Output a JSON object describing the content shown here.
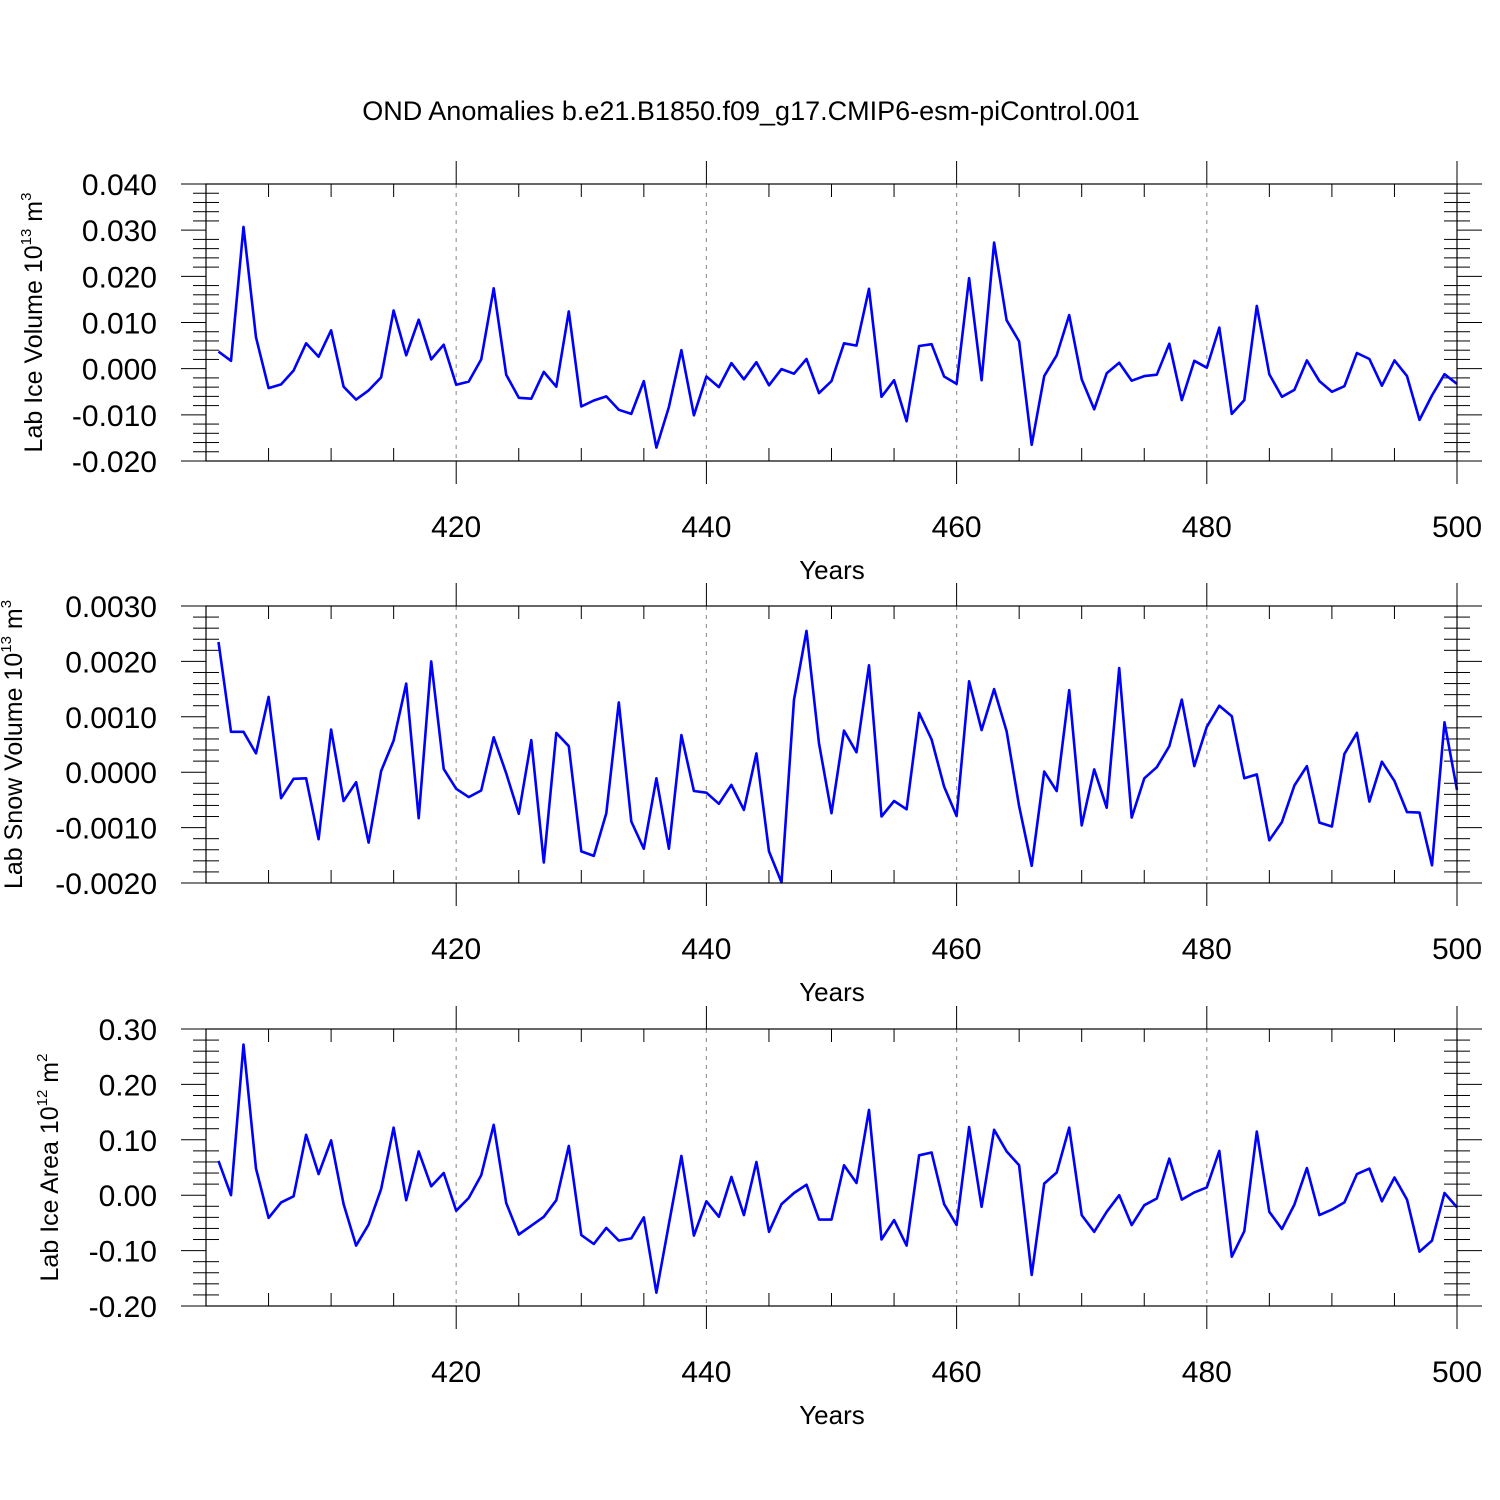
{
  "title": "OND Anomalies b.e21.B1850.f09_g17.CMIP6-esm-piControl.001",
  "colors": {
    "series": "#0000ff",
    "axis": "#000000",
    "grid": "#999999"
  },
  "chart_data": [
    {
      "type": "line",
      "xlabel": "Years",
      "ylabel": {
        "text": "Lab Ice Volume 10",
        "sup": "13",
        "unit": " m",
        "unit_sup": "3"
      },
      "xlim": [
        400,
        500
      ],
      "ylim": [
        -0.02,
        0.04
      ],
      "xticks": [
        "420",
        "440",
        "460",
        "480",
        "500"
      ],
      "yticks": [
        "-0.020",
        "-0.010",
        "0.000",
        "0.010",
        "0.020",
        "0.030",
        "0.040"
      ],
      "grid": "vertical dashed at major x ticks",
      "x": [
        401,
        402,
        403,
        404,
        405,
        406,
        407,
        408,
        409,
        410,
        411,
        412,
        413,
        414,
        415,
        416,
        417,
        418,
        419,
        420,
        421,
        422,
        423,
        424,
        425,
        426,
        427,
        428,
        429,
        430,
        431,
        432,
        433,
        434,
        435,
        436,
        437,
        438,
        439,
        440,
        441,
        442,
        443,
        444,
        445,
        446,
        447,
        448,
        449,
        450,
        451,
        452,
        453,
        454,
        455,
        456,
        457,
        458,
        459,
        460,
        461,
        462,
        463,
        464,
        465,
        466,
        467,
        468,
        469,
        470,
        471,
        472,
        473,
        474,
        475,
        476,
        477,
        478,
        479,
        480,
        481,
        482,
        483,
        484,
        485,
        486,
        487,
        488,
        489,
        490,
        491,
        492,
        493,
        494,
        495,
        496,
        497,
        498,
        499,
        500
      ],
      "values": [
        0.0037,
        0.0017,
        0.0307,
        0.0068,
        -0.0042,
        -0.0034,
        -0.0004,
        0.0055,
        0.0026,
        0.0083,
        -0.0039,
        -0.0067,
        -0.0047,
        -0.0019,
        0.0126,
        0.0029,
        0.0106,
        0.002,
        0.0052,
        -0.0035,
        -0.0028,
        0.002,
        0.0174,
        -0.0013,
        -0.0063,
        -0.0065,
        -0.0007,
        -0.0039,
        0.0124,
        -0.0082,
        -0.0069,
        -0.006,
        -0.0089,
        -0.0098,
        -0.0027,
        -0.0171,
        -0.0083,
        0.004,
        -0.0101,
        -0.0017,
        -0.004,
        0.0012,
        -0.0023,
        0.0014,
        -0.0036,
        -0.0001,
        -0.0011,
        0.0021,
        -0.0053,
        -0.0027,
        0.0055,
        0.005,
        0.0173,
        -0.0061,
        -0.0025,
        -0.0114,
        0.0049,
        0.0053,
        -0.0017,
        -0.0033,
        0.0196,
        -0.0025,
        0.0273,
        0.0105,
        0.0059,
        -0.0165,
        -0.0016,
        0.0029,
        0.0116,
        -0.0023,
        -0.0088,
        -0.001,
        0.0013,
        -0.0026,
        -0.0016,
        -0.0013,
        0.0054,
        -0.0068,
        0.0017,
        0.0002,
        0.0089,
        -0.0098,
        -0.0068,
        0.0136,
        -0.0012,
        -0.0061,
        -0.0046,
        0.0018,
        -0.0027,
        -0.005,
        -0.0038,
        0.0034,
        0.0021,
        -0.0037,
        0.0018,
        -0.0016,
        -0.0111,
        -0.0058,
        -0.0012,
        -0.0033
      ]
    },
    {
      "type": "line",
      "xlabel": "Years",
      "ylabel": {
        "text": "Lab Snow Volume 10",
        "sup": "13",
        "unit": " m",
        "unit_sup": "3"
      },
      "xlim": [
        400,
        500
      ],
      "ylim": [
        -0.002,
        0.003
      ],
      "xticks": [
        "420",
        "440",
        "460",
        "480",
        "500"
      ],
      "yticks": [
        "-0.0020",
        "-0.0010",
        "0.0000",
        "0.0010",
        "0.0020",
        "0.0030"
      ],
      "grid": "vertical dashed at major x ticks",
      "x": [
        401,
        402,
        403,
        404,
        405,
        406,
        407,
        408,
        409,
        410,
        411,
        412,
        413,
        414,
        415,
        416,
        417,
        418,
        419,
        420,
        421,
        422,
        423,
        424,
        425,
        426,
        427,
        428,
        429,
        430,
        431,
        432,
        433,
        434,
        435,
        436,
        437,
        438,
        439,
        440,
        441,
        442,
        443,
        444,
        445,
        446,
        447,
        448,
        449,
        450,
        451,
        452,
        453,
        454,
        455,
        456,
        457,
        458,
        459,
        460,
        461,
        462,
        463,
        464,
        465,
        466,
        467,
        468,
        469,
        470,
        471,
        472,
        473,
        474,
        475,
        476,
        477,
        478,
        479,
        480,
        481,
        482,
        483,
        484,
        485,
        486,
        487,
        488,
        489,
        490,
        491,
        492,
        493,
        494,
        495,
        496,
        497,
        498,
        499,
        500
      ],
      "values": [
        0.00235,
        0.00073,
        0.00073,
        0.00034,
        0.00136,
        -0.00047,
        -0.00012,
        -0.00011,
        -0.00121,
        0.00077,
        -0.00052,
        -0.00018,
        -0.00127,
        2e-05,
        0.00057,
        0.0016,
        -0.00083,
        0.002,
        6e-05,
        -0.0003,
        -0.00045,
        -0.00033,
        0.00063,
        -2e-05,
        -0.00075,
        0.00058,
        -0.00163,
        0.00071,
        0.00047,
        -0.00143,
        -0.00151,
        -0.00074,
        0.00126,
        -0.00089,
        -0.00138,
        -0.00011,
        -0.00138,
        0.00067,
        -0.00034,
        -0.00037,
        -0.00057,
        -0.00023,
        -0.00068,
        0.00034,
        -0.00143,
        -0.00199,
        0.00131,
        0.00255,
        0.00052,
        -0.00074,
        0.00075,
        0.00036,
        0.00193,
        -0.0008,
        -0.00052,
        -0.00067,
        0.00107,
        0.00059,
        -0.00026,
        -0.00079,
        0.00164,
        0.00076,
        0.0015,
        0.00074,
        -0.00061,
        -0.00169,
        1e-05,
        -0.00034,
        0.00148,
        -0.00096,
        5e-05,
        -0.00064,
        0.00188,
        -0.00082,
        -0.00011,
        9e-05,
        0.00047,
        0.00131,
        0.00011,
        0.00082,
        0.0012,
        0.00101,
        -0.00011,
        -4e-05,
        -0.00123,
        -0.0009,
        -0.00024,
        0.00011,
        -0.00091,
        -0.00098,
        0.00033,
        0.00071,
        -0.00053,
        0.00019,
        -0.00016,
        -0.00072,
        -0.00073,
        -0.00168,
        0.0009,
        -0.00032
      ]
    },
    {
      "type": "line",
      "xlabel": "Years",
      "ylabel": {
        "text": "Lab Ice Area 10",
        "sup": "12",
        "unit": " m",
        "unit_sup": "2"
      },
      "xlim": [
        400,
        500
      ],
      "ylim": [
        -0.2,
        0.3
      ],
      "xticks": [
        "420",
        "440",
        "460",
        "480",
        "500"
      ],
      "yticks": [
        "-0.20",
        "-0.10",
        "0.00",
        "0.10",
        "0.20",
        "0.30"
      ],
      "grid": "vertical dashed at major x ticks",
      "x": [
        401,
        402,
        403,
        404,
        405,
        406,
        407,
        408,
        409,
        410,
        411,
        412,
        413,
        414,
        415,
        416,
        417,
        418,
        419,
        420,
        421,
        422,
        423,
        424,
        425,
        426,
        427,
        428,
        429,
        430,
        431,
        432,
        433,
        434,
        435,
        436,
        437,
        438,
        439,
        440,
        441,
        442,
        443,
        444,
        445,
        446,
        447,
        448,
        449,
        450,
        451,
        452,
        453,
        454,
        455,
        456,
        457,
        458,
        459,
        460,
        461,
        462,
        463,
        464,
        465,
        466,
        467,
        468,
        469,
        470,
        471,
        472,
        473,
        474,
        475,
        476,
        477,
        478,
        479,
        480,
        481,
        482,
        483,
        484,
        485,
        486,
        487,
        488,
        489,
        490,
        491,
        492,
        493,
        494,
        495,
        496,
        497,
        498,
        499,
        500
      ],
      "values": [
        0.062,
        0.0,
        0.272,
        0.048,
        -0.041,
        -0.013,
        -0.002,
        0.109,
        0.038,
        0.099,
        -0.016,
        -0.091,
        -0.053,
        0.011,
        0.122,
        -0.009,
        0.079,
        0.016,
        0.04,
        -0.028,
        -0.005,
        0.036,
        0.127,
        -0.014,
        -0.071,
        -0.055,
        -0.039,
        -0.009,
        0.089,
        -0.072,
        -0.088,
        -0.059,
        -0.082,
        -0.078,
        -0.04,
        -0.176,
        -0.052,
        0.071,
        -0.073,
        -0.011,
        -0.039,
        0.033,
        -0.036,
        0.06,
        -0.066,
        -0.016,
        0.004,
        0.019,
        -0.044,
        -0.044,
        0.054,
        0.022,
        0.154,
        -0.08,
        -0.045,
        -0.091,
        0.072,
        0.077,
        -0.016,
        -0.054,
        0.123,
        -0.021,
        0.118,
        0.079,
        0.054,
        -0.144,
        0.021,
        0.041,
        0.122,
        -0.036,
        -0.066,
        -0.03,
        0.0,
        -0.054,
        -0.018,
        -0.006,
        0.066,
        -0.008,
        0.005,
        0.014,
        0.08,
        -0.111,
        -0.065,
        0.115,
        -0.03,
        -0.061,
        -0.017,
        0.049,
        -0.036,
        -0.026,
        -0.013,
        0.038,
        0.048,
        -0.011,
        0.032,
        -0.008,
        -0.102,
        -0.082,
        0.004,
        -0.022
      ]
    }
  ]
}
